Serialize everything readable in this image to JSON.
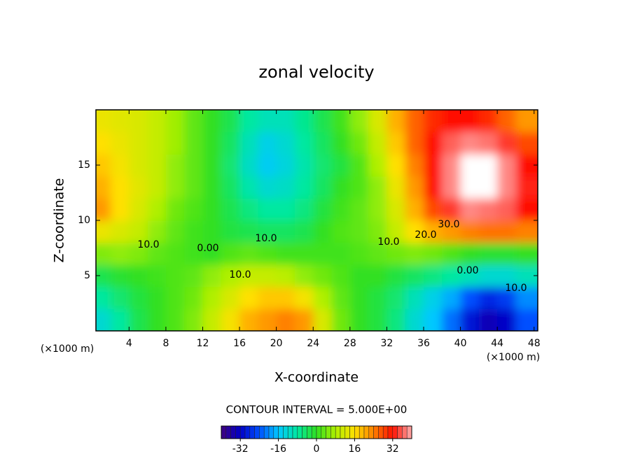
{
  "chart_data": {
    "type": "contour",
    "title": "zonal velocity",
    "x_label": "X-coordinate",
    "y_label": "Z-coordinate",
    "x_unit": "(×1000 m)",
    "y_unit": "(×1000 m)",
    "annotation": "CONTOUR INTERVAL = 5.000E+00",
    "contour_labels": [
      "10.0",
      "0.00",
      "10.0",
      "10.0",
      "10.0",
      "20.0",
      "30.0",
      "0.00",
      "10.0"
    ],
    "x": [
      1,
      3,
      5,
      7,
      9,
      11,
      13,
      15,
      17,
      19,
      21,
      23,
      25,
      27,
      29,
      31,
      33,
      35,
      37,
      39,
      41,
      43,
      45,
      47
    ],
    "y": [
      1,
      3,
      5,
      7,
      9,
      11,
      13,
      15,
      17,
      19
    ],
    "z": [
      [
        -12,
        -8,
        -3,
        0,
        2,
        5,
        10,
        15,
        20,
        22,
        24,
        22,
        12,
        4,
        0,
        -2,
        -6,
        -12,
        -16,
        -22,
        -30,
        -34,
        -32,
        -24
      ],
      [
        -8,
        -5,
        -2,
        0,
        2,
        4,
        8,
        12,
        16,
        18,
        18,
        15,
        8,
        3,
        0,
        -2,
        -5,
        -10,
        -14,
        -18,
        -24,
        -28,
        -26,
        -20
      ],
      [
        -3,
        -1,
        0,
        1,
        2,
        3,
        6,
        8,
        10,
        10,
        9,
        6,
        4,
        2,
        0,
        0,
        -2,
        -4,
        -6,
        -8,
        -10,
        -12,
        -12,
        -10
      ],
      [
        5,
        6,
        5,
        3,
        2,
        1,
        0,
        2,
        3,
        2,
        1,
        1,
        1,
        1,
        2,
        3,
        4,
        5,
        4,
        2,
        0,
        -1,
        -1,
        0
      ],
      [
        14,
        12,
        10,
        6,
        3,
        1,
        0,
        -2,
        -3,
        -4,
        -4,
        -3,
        0,
        2,
        3,
        5,
        10,
        16,
        20,
        22,
        24,
        25,
        25,
        24
      ],
      [
        22,
        16,
        12,
        8,
        4,
        2,
        0,
        -3,
        -6,
        -8,
        -8,
        -6,
        -2,
        1,
        3,
        6,
        12,
        20,
        28,
        34,
        38,
        37,
        36,
        32
      ],
      [
        20,
        16,
        13,
        10,
        6,
        3,
        0,
        -4,
        -9,
        -12,
        -11,
        -8,
        -4,
        0,
        2,
        6,
        14,
        22,
        32,
        38,
        42,
        41,
        38,
        33
      ],
      [
        18,
        15,
        12,
        10,
        6,
        3,
        0,
        -5,
        -11,
        -15,
        -13,
        -9,
        -5,
        -2,
        2,
        8,
        16,
        24,
        32,
        38,
        42,
        41,
        38,
        32
      ],
      [
        16,
        14,
        12,
        10,
        7,
        3,
        0,
        -4,
        -10,
        -14,
        -12,
        -8,
        -4,
        0,
        4,
        10,
        18,
        26,
        32,
        36,
        38,
        37,
        34,
        28
      ],
      [
        14,
        13,
        12,
        10,
        7,
        3,
        0,
        -3,
        -8,
        -10,
        -10,
        -7,
        -3,
        1,
        6,
        12,
        20,
        26,
        30,
        32,
        32,
        30,
        26,
        22
      ]
    ],
    "xlim": [
      0.4,
      48.4
    ],
    "ylim": [
      0,
      20
    ],
    "xticks": [
      4,
      8,
      12,
      16,
      20,
      24,
      28,
      32,
      36,
      40,
      44,
      48
    ],
    "yticks": [
      5,
      10,
      15
    ],
    "clim": [
      -40,
      40
    ],
    "cticks": [
      -32,
      -16,
      0,
      16,
      32
    ],
    "colors": [
      "#400080",
      "#0000c8",
      "#0050ff",
      "#00c8ff",
      "#00e8a0",
      "#30e020",
      "#b0f000",
      "#ffe000",
      "#ff8000",
      "#ff1000",
      "#ffb0b0"
    ],
    "over_color": "#ffffff"
  }
}
